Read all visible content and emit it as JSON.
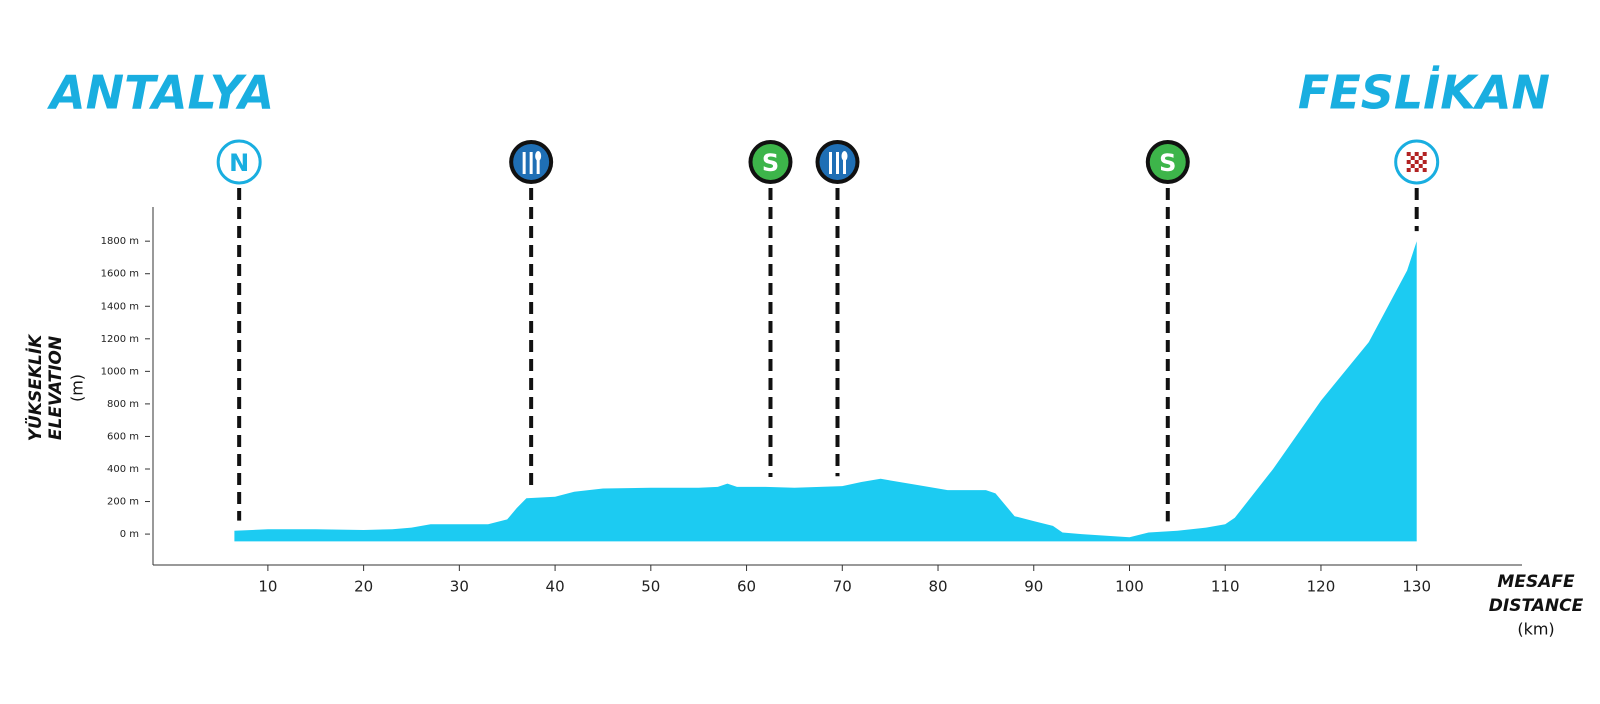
{
  "chart_data": {
    "type": "area",
    "start": "ANTALYA",
    "finish": "FESLİKAN",
    "y_label": [
      "YÜKSEKLİK",
      "ELEVATION",
      "(m)"
    ],
    "x_label": [
      "MESAFE",
      "DISTANCE",
      "(km)"
    ],
    "color": "#1ccbf2",
    "x": [
      6.5,
      10,
      15,
      20,
      23,
      25,
      27,
      30,
      33,
      35,
      36,
      37,
      40,
      42,
      45,
      50,
      55,
      57,
      58,
      59,
      62,
      65,
      70,
      72,
      74,
      78,
      81,
      85,
      86,
      88,
      90,
      92,
      93,
      95,
      100,
      102,
      105,
      108,
      110,
      111,
      115,
      120,
      125,
      127,
      129,
      130
    ],
    "values": [
      20,
      30,
      30,
      25,
      30,
      40,
      60,
      60,
      60,
      90,
      160,
      220,
      230,
      260,
      280,
      285,
      285,
      290,
      310,
      290,
      290,
      285,
      295,
      320,
      340,
      300,
      270,
      270,
      250,
      110,
      80,
      50,
      10,
      0,
      -20,
      10,
      20,
      40,
      60,
      100,
      400,
      820,
      1180,
      1400,
      1620,
      1800
    ],
    "xlim": [
      -2,
      141
    ],
    "ylim": [
      -190,
      2010
    ],
    "xticks": [
      10,
      20,
      30,
      40,
      50,
      60,
      70,
      80,
      90,
      100,
      110,
      120,
      130
    ],
    "yticks": [
      {
        "value": 0,
        "label": "0 m"
      },
      {
        "value": 200,
        "label": "200 m"
      },
      {
        "value": 400,
        "label": "400 m"
      },
      {
        "value": 600,
        "label": "600 m"
      },
      {
        "value": 800,
        "label": "800 m"
      },
      {
        "value": 1000,
        "label": "1000 m"
      },
      {
        "value": 1200,
        "label": "1200 m"
      },
      {
        "value": 1400,
        "label": "1400 m"
      },
      {
        "value": 1600,
        "label": "1600 m"
      },
      {
        "value": 1800,
        "label": "1800 m"
      }
    ],
    "markers": [
      {
        "x": 7,
        "label": "N",
        "kind": "start",
        "color": "#19aee0"
      },
      {
        "x": 37.5,
        "kind": "food",
        "color": "#1f6fb5"
      },
      {
        "x": 62.5,
        "label": "S",
        "kind": "sprint",
        "color": "#3db54a"
      },
      {
        "x": 69.5,
        "kind": "food",
        "color": "#1f6fb5"
      },
      {
        "x": 104,
        "label": "S",
        "kind": "sprint",
        "color": "#3db54a"
      },
      {
        "x": 130,
        "kind": "finish",
        "color": "#19aee0"
      }
    ]
  }
}
